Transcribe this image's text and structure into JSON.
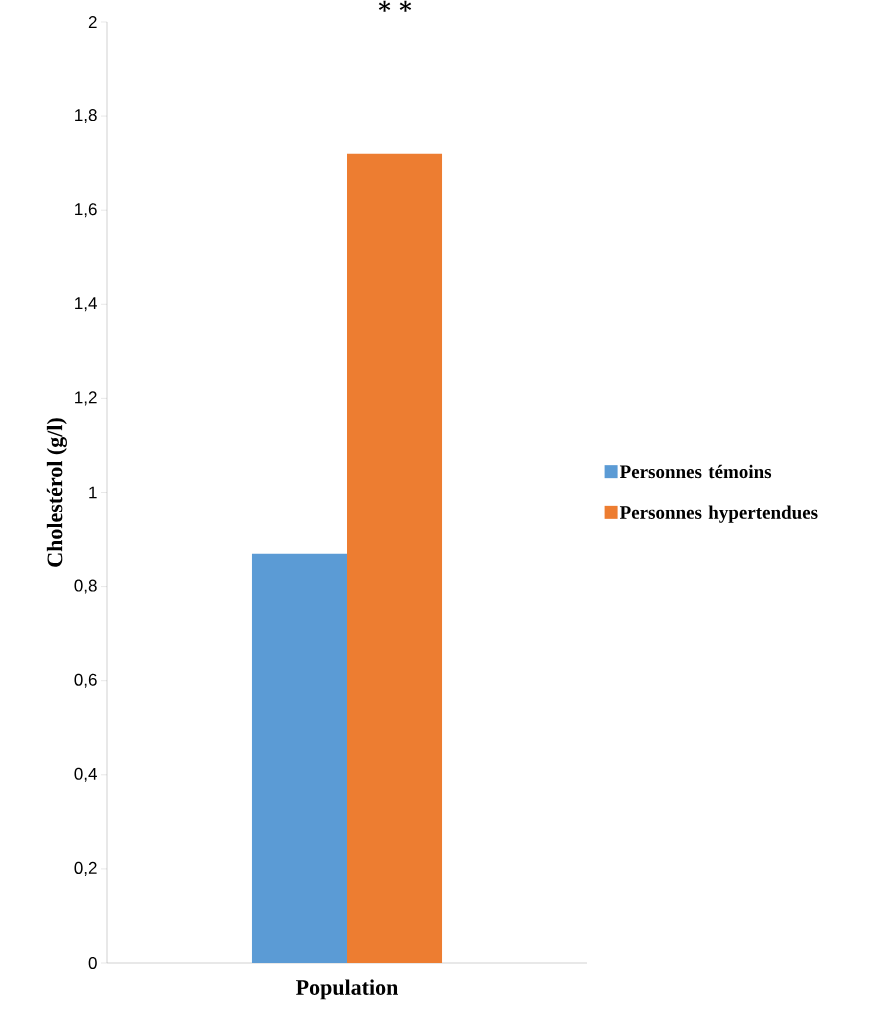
{
  "chart_data": {
    "type": "bar",
    "ylabel": "Cholestérol (g/l)",
    "xlabel": "Population",
    "categories": [
      null
    ],
    "series": [
      {
        "name": "Personnes témoins",
        "color": "#5b9bd5",
        "values": [
          0.87
        ]
      },
      {
        "name": "Personnes hypertendues",
        "color": "#ed7d31",
        "values": [
          1.72
        ]
      }
    ],
    "ylim": [
      0,
      2
    ],
    "yticks": [
      0,
      {
        "value": 0.2,
        "label": "0,2"
      },
      {
        "value": 0.4,
        "label": "0,4"
      },
      {
        "value": 0.6,
        "label": "0,6"
      },
      {
        "value": 0.8,
        "label": "0,8"
      },
      1,
      {
        "value": 1.2,
        "label": "1,2"
      },
      {
        "value": 1.4,
        "label": "1,4"
      },
      {
        "value": 1.6,
        "label": "1,6"
      },
      {
        "value": 1.8,
        "label": "1,8"
      },
      2
    ],
    "annotations": [
      "* *"
    ],
    "legend": "right",
    "grid": false
  }
}
